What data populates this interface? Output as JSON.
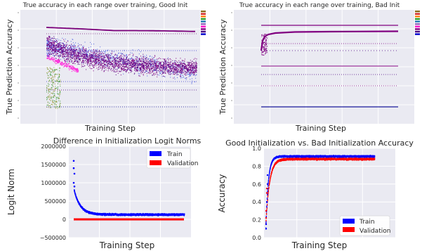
{
  "chart_data": [
    {
      "type": "scatter",
      "title": "True accuracy in each range over training, Good Init",
      "xlabel": "Training Step",
      "ylabel": "True Prediction Accuracy",
      "grid": true,
      "legend_placement": "top-right",
      "legend_colors": [
        "#8c6d1f",
        "#d62728",
        "#ff7f0e",
        "#2ca02c",
        "#1f77b4",
        "#9467bd",
        "#ff00cc",
        "#800080",
        "#4b0082",
        "#0000cd"
      ],
      "colors": {
        "bg": "#eaeaf2",
        "purple": "#800080",
        "dark": "#4b0082",
        "blue": "#2840e0",
        "magenta": "#ff33dd",
        "olive": "#9a9a3a",
        "green": "#3a9a3a"
      }
    },
    {
      "type": "scatter",
      "title": "True accuracy in each range over training, Bad Init",
      "xlabel": "Training Step",
      "ylabel": "True Prediction Accuracy",
      "grid": true,
      "legend_placement": "top-right",
      "legend_colors": [
        "#8c6d1f",
        "#d62728",
        "#ff7f0e",
        "#2ca02c",
        "#1f77b4",
        "#9467bd",
        "#ff00cc",
        "#800080",
        "#4b0082",
        "#0000cd"
      ],
      "colors": {
        "bg": "#eaeaf2",
        "purple": "#800080",
        "dark": "#4b0082"
      }
    },
    {
      "type": "scatter",
      "title": "Difference in Initialization Logit Norms",
      "xlabel": "Training Step",
      "ylabel": "Logit Norm",
      "ylim": [
        -500000,
        2000000
      ],
      "yticks": [
        -500000,
        0,
        500000,
        1000000,
        1500000,
        2000000
      ],
      "ytick_labels": [
        "−500000",
        "0",
        "500000",
        "1000000",
        "1500000",
        "2000000"
      ],
      "grid": true,
      "legend_placement": "upper right",
      "series": [
        {
          "name": "Train",
          "color": "#0000ff",
          "start": 800000,
          "spike": 1600000,
          "plateau": 130000
        },
        {
          "name": "Validation",
          "color": "#ff0000",
          "value": 0
        }
      ]
    },
    {
      "type": "scatter",
      "title": "Good Initialization vs. Bad Initialization Accuracy",
      "xlabel": "Training Step",
      "ylabel": "Accuracy",
      "ylim": [
        0.0,
        1.0
      ],
      "yticks": [
        0.0,
        0.2,
        0.4,
        0.6,
        0.8,
        1.0
      ],
      "ytick_labels": [
        "0.0",
        "0.2",
        "0.4",
        "0.6",
        "0.8",
        "1.0"
      ],
      "grid": true,
      "legend_placement": "lower right",
      "series": [
        {
          "name": "Train",
          "color": "#0000ff",
          "start": 0.1,
          "plateau": 0.91
        },
        {
          "name": "Validation",
          "color": "#ff0000",
          "start": 0.15,
          "plateau": 0.88
        }
      ]
    }
  ]
}
